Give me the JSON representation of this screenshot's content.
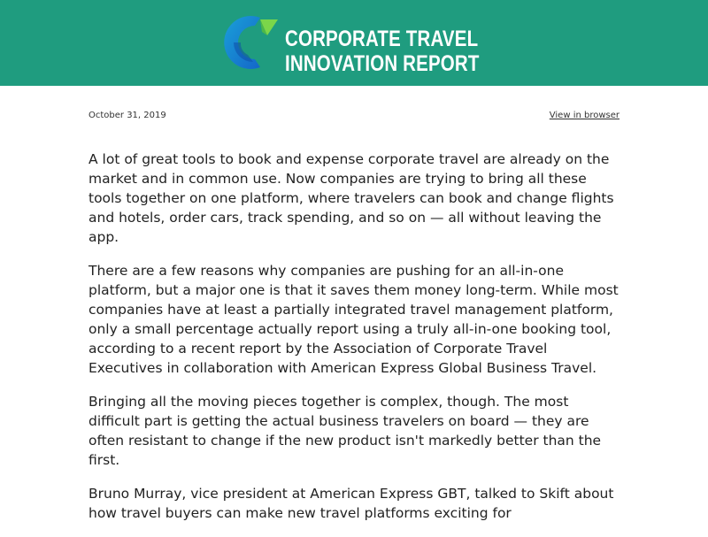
{
  "header": {
    "logo_line1": "CORPORATE TRAVEL",
    "logo_line2": "INNOVATION REPORT",
    "colors": {
      "background": "#1f9c7f",
      "logo_blue": "#1a7fd4",
      "logo_green": "#7bd64a"
    }
  },
  "meta": {
    "date": "October 31, 2019",
    "view_in_browser": "View in browser"
  },
  "article": {
    "paragraphs": [
      "A lot of great tools to book and expense corporate travel are already on the market and in common use. Now companies are trying to bring all these tools together on one platform, where travelers can book and change flights and hotels, order cars, track spending, and so on — all without leaving the app.",
      "There are a few reasons why companies are pushing for an all-in-one platform, but a major one is that it saves them money long-term. While most companies have at least a partially integrated travel management platform, only a small percentage actually report using a truly all-in-one booking tool, according to a recent report by the Association of Corporate Travel Executives in collaboration with American Express Global Business Travel.",
      "Bringing all the moving pieces together is complex, though. The most difficult part is getting the actual business travelers on board — they are often resistant to change if the new product isn't markedly better than the first.",
      "Bruno Murray, vice president at American Express GBT, talked to Skift about how travel buyers can make new travel platforms exciting for"
    ]
  }
}
